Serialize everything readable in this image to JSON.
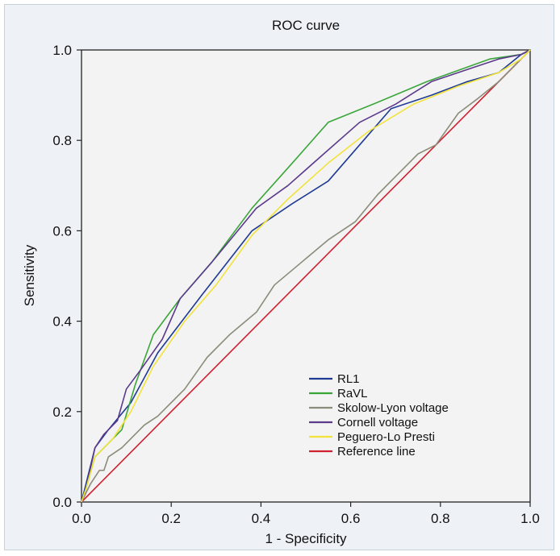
{
  "chart_data": {
    "type": "line",
    "title": "ROC curve",
    "xlabel": "1 - Specificity",
    "ylabel": "Sensitivity",
    "xlim": [
      0,
      1
    ],
    "ylim": [
      0,
      1
    ],
    "xticks": [
      "0.0",
      "0.2",
      "0.4",
      "0.6",
      "0.8",
      "1.0"
    ],
    "yticks": [
      "0.0",
      "0.2",
      "0.4",
      "0.6",
      "0.8",
      "1.0"
    ],
    "grid": false,
    "legend_position": "bottom-right",
    "series": [
      {
        "name": "RL1",
        "color": "#1f3a93",
        "x": [
          0,
          0.01,
          0.03,
          0.06,
          0.11,
          0.17,
          0.27,
          0.38,
          0.47,
          0.55,
          0.62,
          0.69,
          0.78,
          0.86,
          0.93,
          0.98,
          1.0
        ],
        "y": [
          0,
          0.04,
          0.12,
          0.16,
          0.22,
          0.33,
          0.46,
          0.6,
          0.66,
          0.71,
          0.79,
          0.87,
          0.9,
          0.93,
          0.95,
          0.99,
          1.0
        ]
      },
      {
        "name": "RaVL",
        "color": "#3aa63a",
        "x": [
          0,
          0.01,
          0.03,
          0.06,
          0.09,
          0.12,
          0.16,
          0.22,
          0.29,
          0.38,
          0.47,
          0.55,
          0.65,
          0.77,
          0.91,
          0.98,
          1.0
        ],
        "y": [
          0,
          0.03,
          0.1,
          0.13,
          0.16,
          0.26,
          0.37,
          0.45,
          0.53,
          0.65,
          0.75,
          0.84,
          0.88,
          0.93,
          0.98,
          0.99,
          1.0
        ]
      },
      {
        "name": "Skolow-Lyon voltage",
        "color": "#8c8c7a",
        "x": [
          0,
          0.02,
          0.04,
          0.05,
          0.06,
          0.09,
          0.14,
          0.17,
          0.21,
          0.23,
          0.28,
          0.33,
          0.39,
          0.43,
          0.49,
          0.55,
          0.61,
          0.66,
          0.7,
          0.75,
          0.79,
          0.84,
          0.88,
          0.93,
          0.98,
          1.0
        ],
        "y": [
          0,
          0.04,
          0.07,
          0.07,
          0.1,
          0.12,
          0.17,
          0.19,
          0.23,
          0.25,
          0.32,
          0.37,
          0.42,
          0.48,
          0.53,
          0.58,
          0.62,
          0.68,
          0.72,
          0.77,
          0.79,
          0.86,
          0.89,
          0.93,
          0.98,
          1.0
        ]
      },
      {
        "name": "Cornell voltage",
        "color": "#5b3a8c",
        "x": [
          0,
          0.01,
          0.03,
          0.05,
          0.08,
          0.1,
          0.13,
          0.18,
          0.22,
          0.29,
          0.39,
          0.46,
          0.54,
          0.62,
          0.7,
          0.78,
          0.87,
          0.93,
          0.98,
          1.0
        ],
        "y": [
          0,
          0.03,
          0.12,
          0.15,
          0.18,
          0.25,
          0.29,
          0.36,
          0.45,
          0.53,
          0.65,
          0.7,
          0.77,
          0.84,
          0.88,
          0.93,
          0.96,
          0.98,
          0.99,
          1.0
        ]
      },
      {
        "name": "Peguero-Lo Presti",
        "color": "#f2e33b",
        "x": [
          0,
          0.01,
          0.03,
          0.07,
          0.11,
          0.16,
          0.23,
          0.3,
          0.38,
          0.46,
          0.55,
          0.64,
          0.74,
          0.84,
          0.93,
          0.98,
          1.0
        ],
        "y": [
          0,
          0.03,
          0.1,
          0.14,
          0.2,
          0.3,
          0.4,
          0.48,
          0.59,
          0.67,
          0.75,
          0.82,
          0.88,
          0.92,
          0.95,
          0.98,
          1.0
        ]
      },
      {
        "name": "Reference line",
        "color": "#d02030",
        "x": [
          0,
          1
        ],
        "y": [
          0,
          1
        ]
      }
    ]
  }
}
